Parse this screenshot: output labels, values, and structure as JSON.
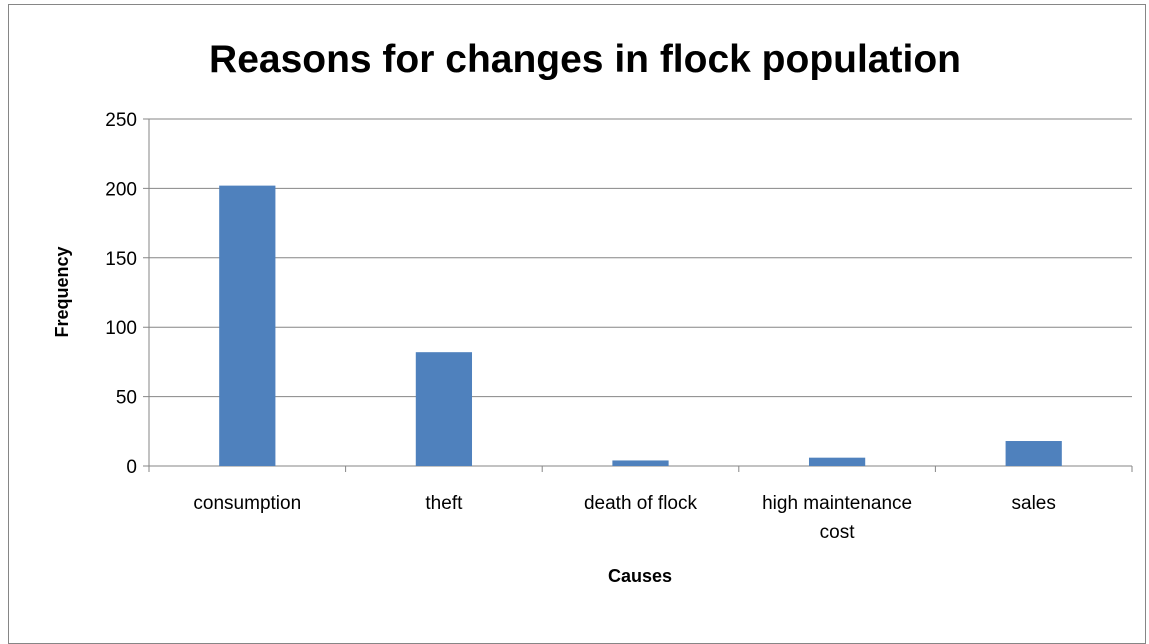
{
  "chart_data": {
    "type": "bar",
    "title": "Reasons for changes in flock population",
    "xlabel": "Causes",
    "ylabel": "Frequency",
    "categories": [
      [
        "consumption"
      ],
      [
        "theft"
      ],
      [
        "death of flock"
      ],
      [
        "high maintenance",
        "cost"
      ],
      [
        "sales"
      ]
    ],
    "values": [
      202,
      82,
      4,
      6,
      18
    ],
    "ylim": [
      0,
      250
    ],
    "yticks": [
      0,
      50,
      100,
      150,
      200,
      250
    ],
    "grid": true,
    "legend": "none",
    "bar_color": "#4F81BD",
    "grid_color": "#868686"
  }
}
